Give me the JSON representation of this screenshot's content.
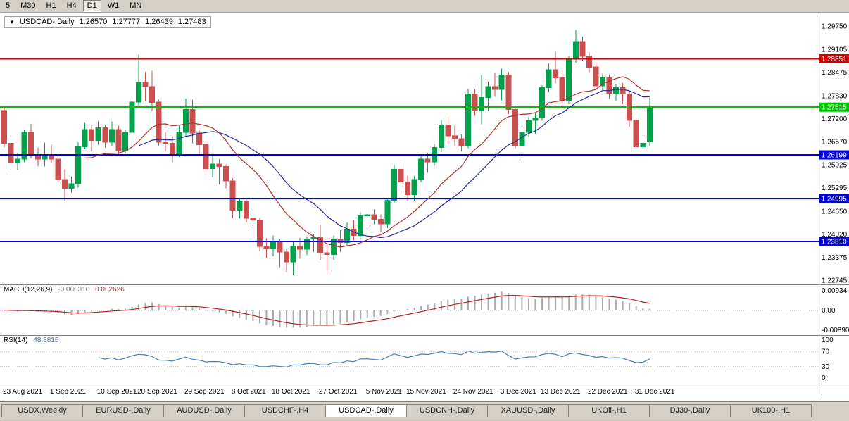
{
  "toolbar": {
    "periods": [
      {
        "label": "5"
      },
      {
        "label": "M30"
      },
      {
        "label": "H1"
      },
      {
        "label": "H4"
      },
      {
        "label": "D1"
      },
      {
        "label": "W1"
      },
      {
        "label": "MN"
      }
    ],
    "active_period": "D1"
  },
  "ohlc_box": {
    "collapse_arrow": "▼",
    "symbol": "USDCAD-,Daily",
    "open": "1.26570",
    "high": "1.27777",
    "low": "1.26439",
    "close": "1.27483"
  },
  "indicators": {
    "macd": {
      "label": "MACD(12,26,9)",
      "value_main": "-0.000310",
      "value_signal": "0.002626",
      "axis_labels": [
        "0.00934",
        "0.00",
        "-0.00890"
      ]
    },
    "rsi": {
      "label": "RSI(14)",
      "value": "48.8815",
      "axis_labels": [
        "100",
        "70",
        "30",
        "0"
      ],
      "levels": [
        70,
        30
      ]
    }
  },
  "chart_data": {
    "type": "candlestick",
    "symbol": "USDCAD-",
    "timeframe": "Daily",
    "title": "USDCAD-,Daily",
    "y_axis_ticks": [
      "1.29750",
      "1.29105",
      "1.28475",
      "1.27830",
      "1.27200",
      "1.26570",
      "1.25925",
      "1.25295",
      "1.24650",
      "1.24020",
      "1.23375",
      "1.22745"
    ],
    "x_axis_labels": [
      {
        "i": 0,
        "label": "23 Aug 2021"
      },
      {
        "i": 7,
        "label": "1 Sep 2021"
      },
      {
        "i": 14,
        "label": "10 Sep 2021"
      },
      {
        "i": 20,
        "label": "20 Sep 2021"
      },
      {
        "i": 27,
        "label": "29 Sep 2021"
      },
      {
        "i": 34,
        "label": "8 Oct 2021"
      },
      {
        "i": 40,
        "label": "18 Oct 2021"
      },
      {
        "i": 47,
        "label": "27 Oct 2021"
      },
      {
        "i": 54,
        "label": "5 Nov 2021"
      },
      {
        "i": 60,
        "label": "15 Nov 2021"
      },
      {
        "i": 67,
        "label": "24 Nov 2021"
      },
      {
        "i": 74,
        "label": "3 Dec 2021"
      },
      {
        "i": 80,
        "label": "13 Dec 2021"
      },
      {
        "i": 87,
        "label": "22 Dec 2021"
      },
      {
        "i": 94,
        "label": "31 Dec 2021"
      }
    ],
    "horizontal_lines": [
      {
        "price": 1.28851,
        "label": "1.28851",
        "color": "#d40000"
      },
      {
        "price": 1.27515,
        "label": "1.27515",
        "color": "#00c400"
      },
      {
        "price": 1.26199,
        "label": "1.26199",
        "color": "#0000dc"
      },
      {
        "price": 1.24995,
        "label": "1.24995",
        "color": "#0000dc"
      },
      {
        "price": 1.2381,
        "label": "1.23810",
        "color": "#0000dc"
      }
    ],
    "moving_averages": [
      {
        "type": "SMA",
        "period": 13,
        "color": "#b03030"
      },
      {
        "type": "SMA",
        "period": 21,
        "color": "#2929a0"
      }
    ],
    "colors": {
      "up": "#00a14b",
      "down": "#cc4f4f",
      "background": "#ffffff",
      "macd_histogram": "#ababab",
      "macd_signal": "#b22222",
      "rsi_line": "#4a7ebb",
      "axis_text": "#000000",
      "divider": "#808080"
    },
    "dates": [
      "2021.08.23",
      "2021.08.24",
      "2021.08.25",
      "2021.08.26",
      "2021.08.27",
      "2021.08.30",
      "2021.08.31",
      "2021.09.01",
      "2021.09.02",
      "2021.09.03",
      "2021.09.06",
      "2021.09.07",
      "2021.09.08",
      "2021.09.09",
      "2021.09.10",
      "2021.09.13",
      "2021.09.14",
      "2021.09.15",
      "2021.09.16",
      "2021.09.17",
      "2021.09.20",
      "2021.09.21",
      "2021.09.22",
      "2021.09.23",
      "2021.09.24",
      "2021.09.27",
      "2021.09.28",
      "2021.09.29",
      "2021.09.30",
      "2021.10.01",
      "2021.10.04",
      "2021.10.05",
      "2021.10.06",
      "2021.10.07",
      "2021.10.08",
      "2021.10.11",
      "2021.10.12",
      "2021.10.13",
      "2021.10.14",
      "2021.10.15",
      "2021.10.18",
      "2021.10.19",
      "2021.10.20",
      "2021.10.21",
      "2021.10.22",
      "2021.10.25",
      "2021.10.26",
      "2021.10.27",
      "2021.10.28",
      "2021.10.29",
      "2021.11.01",
      "2021.11.02",
      "2021.11.03",
      "2021.11.04",
      "2021.11.05",
      "2021.11.08",
      "2021.11.09",
      "2021.11.10",
      "2021.11.11",
      "2021.11.12",
      "2021.11.15",
      "2021.11.16",
      "2021.11.17",
      "2021.11.18",
      "2021.11.19",
      "2021.11.22",
      "2021.11.23",
      "2021.11.24",
      "2021.11.25",
      "2021.11.26",
      "2021.11.29",
      "2021.11.30",
      "2021.12.01",
      "2021.12.02",
      "2021.12.03",
      "2021.12.06",
      "2021.12.07",
      "2021.12.08",
      "2021.12.09",
      "2021.12.10",
      "2021.12.13",
      "2021.12.14",
      "2021.12.15",
      "2021.12.16",
      "2021.12.17",
      "2021.12.20",
      "2021.12.21",
      "2021.12.22",
      "2021.12.23",
      "2021.12.24",
      "2021.12.27",
      "2021.12.28",
      "2021.12.29",
      "2021.12.30",
      "2021.12.31",
      "2022.01.03",
      "2022.01.04"
    ],
    "ohlc": [
      [
        1.2742,
        1.2752,
        1.264,
        1.2652
      ],
      [
        1.2652,
        1.2665,
        1.258,
        1.2598
      ],
      [
        1.2598,
        1.2625,
        1.2578,
        1.2608
      ],
      [
        1.2608,
        1.269,
        1.26,
        1.2682
      ],
      [
        1.2682,
        1.2705,
        1.261,
        1.262
      ],
      [
        1.262,
        1.264,
        1.2588,
        1.2608
      ],
      [
        1.2608,
        1.2654,
        1.2588,
        1.2621
      ],
      [
        1.2621,
        1.2648,
        1.2598,
        1.2608
      ],
      [
        1.2608,
        1.262,
        1.2544,
        1.2552
      ],
      [
        1.2552,
        1.258,
        1.2494,
        1.2528
      ],
      [
        1.2528,
        1.256,
        1.2516,
        1.254
      ],
      [
        1.254,
        1.2655,
        1.253,
        1.2642
      ],
      [
        1.2642,
        1.2708,
        1.2636,
        1.269
      ],
      [
        1.269,
        1.2702,
        1.263,
        1.266
      ],
      [
        1.266,
        1.2712,
        1.2648,
        1.2695
      ],
      [
        1.2695,
        1.2702,
        1.264,
        1.2655
      ],
      [
        1.2655,
        1.2712,
        1.2645,
        1.269
      ],
      [
        1.269,
        1.27,
        1.2618,
        1.2632
      ],
      [
        1.2632,
        1.269,
        1.2624,
        1.2682
      ],
      [
        1.2682,
        1.2772,
        1.2674,
        1.2765
      ],
      [
        1.2765,
        1.2896,
        1.2756,
        1.282
      ],
      [
        1.282,
        1.2848,
        1.2768,
        1.2808
      ],
      [
        1.2808,
        1.2852,
        1.274,
        1.2765
      ],
      [
        1.2765,
        1.2772,
        1.2644,
        1.2655
      ],
      [
        1.2655,
        1.2682,
        1.263,
        1.2652
      ],
      [
        1.2652,
        1.267,
        1.26,
        1.2622
      ],
      [
        1.2622,
        1.27,
        1.2614,
        1.2682
      ],
      [
        1.2682,
        1.2775,
        1.2672,
        1.2745
      ],
      [
        1.2745,
        1.2772,
        1.2652,
        1.268
      ],
      [
        1.268,
        1.269,
        1.262,
        1.2648
      ],
      [
        1.2648,
        1.2656,
        1.257,
        1.2582
      ],
      [
        1.2582,
        1.262,
        1.2558,
        1.2595
      ],
      [
        1.2595,
        1.2608,
        1.2538,
        1.2588
      ],
      [
        1.2588,
        1.2594,
        1.2528,
        1.2548
      ],
      [
        1.2548,
        1.2556,
        1.2446,
        1.2468
      ],
      [
        1.2468,
        1.2502,
        1.2444,
        1.2492
      ],
      [
        1.2492,
        1.2502,
        1.2434,
        1.2445
      ],
      [
        1.2445,
        1.247,
        1.2424,
        1.244
      ],
      [
        1.244,
        1.2446,
        1.2354,
        1.2368
      ],
      [
        1.2368,
        1.239,
        1.2336,
        1.2362
      ],
      [
        1.2362,
        1.2398,
        1.234,
        1.2378
      ],
      [
        1.2378,
        1.2388,
        1.231,
        1.2352
      ],
      [
        1.2352,
        1.2362,
        1.2296,
        1.2325
      ],
      [
        1.2325,
        1.2382,
        1.2288,
        1.2368
      ],
      [
        1.2368,
        1.2392,
        1.2334,
        1.236
      ],
      [
        1.236,
        1.2396,
        1.2344,
        1.2388
      ],
      [
        1.2388,
        1.2402,
        1.2352,
        1.2392
      ],
      [
        1.2392,
        1.2428,
        1.233,
        1.235
      ],
      [
        1.235,
        1.2386,
        1.2298,
        1.2345
      ],
      [
        1.2345,
        1.2398,
        1.233,
        1.2388
      ],
      [
        1.2388,
        1.2412,
        1.2352,
        1.2378
      ],
      [
        1.2378,
        1.2434,
        1.2368,
        1.2415
      ],
      [
        1.2415,
        1.244,
        1.2384,
        1.2398
      ],
      [
        1.2398,
        1.2462,
        1.239,
        1.2452
      ],
      [
        1.2452,
        1.2472,
        1.2424,
        1.2455
      ],
      [
        1.2455,
        1.247,
        1.2428,
        1.2442
      ],
      [
        1.2442,
        1.2456,
        1.2406,
        1.243
      ],
      [
        1.243,
        1.2502,
        1.2418,
        1.2495
      ],
      [
        1.2495,
        1.2592,
        1.2488,
        1.258
      ],
      [
        1.258,
        1.2598,
        1.2524,
        1.2545
      ],
      [
        1.2545,
        1.2562,
        1.2494,
        1.251
      ],
      [
        1.251,
        1.2562,
        1.2494,
        1.2552
      ],
      [
        1.2552,
        1.2616,
        1.2544,
        1.2608
      ],
      [
        1.2608,
        1.2626,
        1.257,
        1.26
      ],
      [
        1.26,
        1.265,
        1.259,
        1.264
      ],
      [
        1.264,
        1.2716,
        1.2628,
        1.2702
      ],
      [
        1.2702,
        1.2722,
        1.2652,
        1.2672
      ],
      [
        1.2672,
        1.27,
        1.2644,
        1.2665
      ],
      [
        1.2665,
        1.2676,
        1.263,
        1.2645
      ],
      [
        1.2645,
        1.2802,
        1.2638,
        1.2788
      ],
      [
        1.2788,
        1.28,
        1.2728,
        1.2742
      ],
      [
        1.2742,
        1.284,
        1.2704,
        1.2778
      ],
      [
        1.2778,
        1.2822,
        1.274,
        1.2808
      ],
      [
        1.2808,
        1.2846,
        1.278,
        1.28
      ],
      [
        1.28,
        1.2858,
        1.277,
        1.284
      ],
      [
        1.284,
        1.2848,
        1.2732,
        1.2745
      ],
      [
        1.2745,
        1.2756,
        1.2638,
        1.2645
      ],
      [
        1.2645,
        1.2692,
        1.2604,
        1.2682
      ],
      [
        1.2682,
        1.2726,
        1.2668,
        1.2715
      ],
      [
        1.2715,
        1.2736,
        1.2678,
        1.2722
      ],
      [
        1.2722,
        1.2812,
        1.2714,
        1.2805
      ],
      [
        1.2805,
        1.2872,
        1.2794,
        1.2855
      ],
      [
        1.2855,
        1.2906,
        1.2818,
        1.2832
      ],
      [
        1.2832,
        1.2852,
        1.2756,
        1.277
      ],
      [
        1.277,
        1.2892,
        1.276,
        1.2885
      ],
      [
        1.2885,
        1.2964,
        1.2874,
        1.2932
      ],
      [
        1.2932,
        1.2946,
        1.2878,
        1.2892
      ],
      [
        1.2892,
        1.2902,
        1.2848,
        1.2862
      ],
      [
        1.2862,
        1.2872,
        1.2798,
        1.281
      ],
      [
        1.281,
        1.2844,
        1.2796,
        1.2832
      ],
      [
        1.2832,
        1.2842,
        1.2774,
        1.279
      ],
      [
        1.279,
        1.2816,
        1.2768,
        1.2805
      ],
      [
        1.2805,
        1.2818,
        1.276,
        1.2788
      ],
      [
        1.2788,
        1.2796,
        1.2698,
        1.2715
      ],
      [
        1.2715,
        1.2722,
        1.2628,
        1.2642
      ],
      [
        1.2642,
        1.2668,
        1.2628,
        1.2652
      ],
      [
        1.2657,
        1.2778,
        1.2644,
        1.2748
      ]
    ]
  },
  "tabs": {
    "items": [
      {
        "label": "USDX,Weekly",
        "active": false
      },
      {
        "label": "EURUSD-,Daily",
        "active": false
      },
      {
        "label": "AUDUSD-,Daily",
        "active": false
      },
      {
        "label": "USDCHF-,H4",
        "active": false
      },
      {
        "label": "USDCAD-,Daily",
        "active": true
      },
      {
        "label": "USDCNH-,Daily",
        "active": false
      },
      {
        "label": "XAUUSD-,Daily",
        "active": false
      },
      {
        "label": "UKOil-,H1",
        "active": false
      },
      {
        "label": "DJ30-,Daily",
        "active": false
      },
      {
        "label": "UK100-,H1",
        "active": false
      }
    ]
  }
}
